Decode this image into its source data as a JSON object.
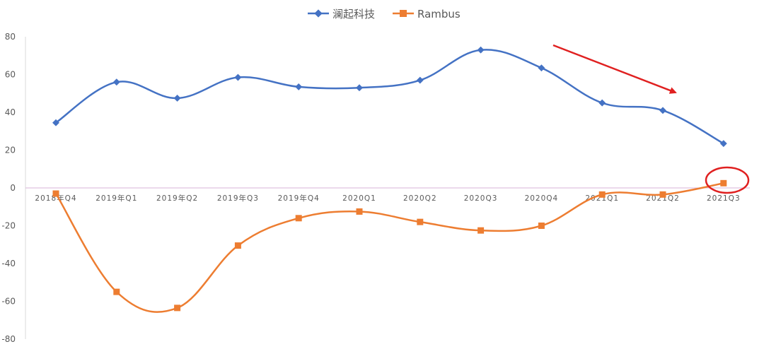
{
  "chart_data": {
    "type": "line",
    "title": "",
    "xlabel": "",
    "ylabel": "",
    "ylim": [
      -80,
      80
    ],
    "yticks": [
      80,
      60,
      40,
      20,
      0,
      -20,
      -40,
      -60,
      -80
    ],
    "categories": [
      "2018年Q4",
      "2019年Q1",
      "2019年Q2",
      "2019年Q3",
      "2019年Q4",
      "2020Q1",
      "2020Q2",
      "2020Q3",
      "2020Q4",
      "2021Q1",
      "2021Q2",
      "2021Q3"
    ],
    "series": [
      {
        "name": "澜起科技",
        "color": "#4472C4",
        "marker": "diamond",
        "values": [
          34.5,
          56,
          47.5,
          58.5,
          53.5,
          53,
          57,
          73,
          63.5,
          45,
          41,
          23.5
        ]
      },
      {
        "name": "Rambus",
        "color": "#ED7D31",
        "marker": "square",
        "values": [
          -3,
          -55,
          -63.5,
          -30.5,
          -16,
          -12.5,
          -18,
          -22.5,
          -20,
          -3.5,
          -3.5,
          2.5
        ]
      }
    ],
    "legend": "top-center",
    "grid": false,
    "annotations": [
      {
        "type": "arrow",
        "color": "#E02020",
        "meaning": "downward-trend"
      },
      {
        "type": "ellipse",
        "color": "#E02020",
        "target": "Rambus 2021Q3"
      }
    ]
  }
}
